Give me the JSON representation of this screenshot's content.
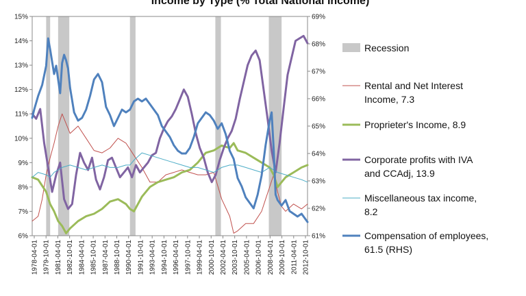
{
  "chart_data": {
    "type": "line",
    "title": "Income by Type (% Total National Income)",
    "x_start_year": 1978.25,
    "x_end_year": 2012.75,
    "x_tick_labels": [
      "1978-04-01",
      "1979-10-01",
      "1981-04-01",
      "1982-10-01",
      "1984-04-01",
      "1985-10-01",
      "1987-04-01",
      "1988-10-01",
      "1990-04-01",
      "1991-10-01",
      "1993-04-01",
      "1994-10-01",
      "1996-04-01",
      "1997-10-01",
      "1999-04-01",
      "2000-10-01",
      "2002-04-01",
      "2003-10-01",
      "2005-04-01",
      "2006-10-01",
      "2008-04-01",
      "2009-10-01",
      "2011-04-01",
      "2012-10-01"
    ],
    "y_left": {
      "min": 6,
      "max": 15,
      "step": 1,
      "ticks": [
        "6%",
        "7%",
        "8%",
        "9%",
        "10%",
        "11%",
        "12%",
        "13%",
        "14%",
        "15%"
      ]
    },
    "y_right": {
      "min": 61,
      "max": 69,
      "step": 1,
      "ticks": [
        "61%",
        "62%",
        "63%",
        "64%",
        "65%",
        "66%",
        "67%",
        "68%",
        "69%"
      ]
    },
    "recessions": [
      [
        1980.0,
        1980.5
      ],
      [
        1981.5,
        1982.9
      ],
      [
        1990.5,
        1991.2
      ],
      [
        2001.2,
        2001.9
      ],
      [
        2007.9,
        2009.5
      ]
    ],
    "legend": [
      {
        "key": "recession",
        "label_lines": [
          "Recession"
        ],
        "color": "#c8c8c8",
        "style": "block"
      },
      {
        "key": "rental",
        "label_lines": [
          "Rental and Net Interest",
          "Income, 7.3"
        ],
        "color": "#c0504d",
        "style": "line",
        "width": 1
      },
      {
        "key": "proprietor",
        "label_lines": [
          "Proprieter's Income, 8.9"
        ],
        "color": "#9bbb59",
        "style": "line",
        "width": 3
      },
      {
        "key": "corporate",
        "label_lines": [
          "Corporate profits with IVA",
          "and CCAdj, 13.9"
        ],
        "color": "#8064a2",
        "style": "line",
        "width": 3
      },
      {
        "key": "misc",
        "label_lines": [
          "Miscellaneous tax income,",
          "8.2"
        ],
        "color": "#4bacc6",
        "style": "line",
        "width": 1
      },
      {
        "key": "comp",
        "label_lines": [
          "Compensation of employees,",
          "61.5 (RHS)"
        ],
        "color": "#4f81bd",
        "style": "line",
        "width": 3
      }
    ],
    "series": [
      {
        "key": "rental",
        "name": "Rental and Net Interest Income, 7.3",
        "axis": "left",
        "x": [
          1978.25,
          1979.0,
          1979.5,
          1980.0,
          1980.5,
          1981.0,
          1981.5,
          1982.0,
          1982.5,
          1983.0,
          1984.0,
          1985.0,
          1986.0,
          1987.0,
          1988.0,
          1989.0,
          1990.0,
          1991.0,
          1992.0,
          1993.0,
          1994.0,
          1995.0,
          1996.0,
          1997.0,
          1998.0,
          1999.0,
          2000.0,
          2001.0,
          2002.0,
          2003.0,
          2003.5,
          2004.0,
          2005.0,
          2006.0,
          2007.0,
          2007.5,
          2008.0,
          2008.5,
          2009.0,
          2009.5,
          2010.0,
          2011.0,
          2012.0,
          2012.75
        ],
        "y": [
          6.6,
          6.8,
          7.5,
          8.5,
          9.2,
          9.8,
          10.5,
          11.0,
          10.6,
          10.2,
          10.5,
          10.0,
          9.5,
          9.4,
          9.6,
          10.0,
          9.8,
          9.3,
          8.8,
          8.2,
          8.2,
          8.5,
          8.6,
          8.7,
          8.6,
          8.5,
          8.5,
          8.6,
          7.5,
          6.8,
          6.1,
          6.2,
          6.5,
          6.5,
          7.0,
          7.5,
          8.0,
          8.5,
          7.8,
          7.2,
          7.0,
          7.3,
          7.1,
          7.3
        ]
      },
      {
        "key": "proprietor",
        "name": "Proprieter's Income, 8.9",
        "axis": "left",
        "x": [
          1978.25,
          1979.0,
          1980.0,
          1980.5,
          1981.0,
          1981.5,
          1982.0,
          1982.5,
          1983.0,
          1984.0,
          1985.0,
          1986.0,
          1987.0,
          1988.0,
          1989.0,
          1990.0,
          1990.5,
          1991.0,
          1992.0,
          1993.0,
          1994.0,
          1995.0,
          1996.0,
          1997.0,
          1998.0,
          1999.0,
          2000.0,
          2001.0,
          2002.0,
          2003.0,
          2003.5,
          2004.0,
          2005.0,
          2006.0,
          2007.0,
          2008.0,
          2008.5,
          2009.0,
          2010.0,
          2011.0,
          2012.0,
          2012.75
        ],
        "y": [
          8.4,
          8.3,
          7.8,
          7.3,
          7.0,
          6.6,
          6.4,
          6.1,
          6.3,
          6.6,
          6.8,
          6.9,
          7.1,
          7.4,
          7.5,
          7.3,
          7.1,
          7.0,
          7.6,
          8.0,
          8.2,
          8.3,
          8.4,
          8.6,
          8.7,
          9.0,
          9.4,
          9.5,
          9.7,
          9.6,
          9.8,
          9.5,
          9.4,
          9.2,
          9.0,
          8.8,
          8.5,
          8.0,
          8.4,
          8.6,
          8.8,
          8.9
        ]
      },
      {
        "key": "corporate",
        "name": "Corporate profits with IVA and CCAdj, 13.9",
        "axis": "left",
        "x": [
          1978.25,
          1978.75,
          1979.25,
          1979.75,
          1980.25,
          1980.75,
          1981.25,
          1981.75,
          1982.25,
          1982.75,
          1983.25,
          1983.75,
          1984.25,
          1984.75,
          1985.25,
          1985.75,
          1986.25,
          1986.75,
          1987.25,
          1987.75,
          1988.25,
          1988.75,
          1989.25,
          1989.75,
          1990.25,
          1990.75,
          1991.25,
          1991.75,
          1992.25,
          1992.75,
          1993.25,
          1993.75,
          1994.25,
          1994.75,
          1995.25,
          1995.75,
          1996.25,
          1996.75,
          1997.25,
          1997.75,
          1998.25,
          1998.75,
          1999.25,
          1999.75,
          2000.25,
          2000.75,
          2001.25,
          2001.75,
          2002.25,
          2002.75,
          2003.25,
          2003.75,
          2004.25,
          2004.75,
          2005.25,
          2005.75,
          2006.25,
          2006.75,
          2007.25,
          2007.75,
          2008.25,
          2008.75,
          2009.25,
          2009.75,
          2010.25,
          2010.75,
          2011.25,
          2011.75,
          2012.25,
          2012.75
        ],
        "y": [
          11.0,
          10.8,
          11.2,
          9.8,
          8.8,
          7.8,
          8.5,
          9.0,
          7.5,
          7.1,
          7.3,
          8.5,
          9.4,
          9.0,
          8.7,
          9.2,
          8.3,
          7.9,
          8.4,
          9.1,
          9.2,
          8.8,
          8.4,
          8.6,
          8.8,
          8.4,
          8.9,
          8.6,
          8.8,
          9.0,
          9.3,
          9.4,
          10.0,
          10.4,
          10.7,
          10.9,
          11.2,
          11.6,
          12.0,
          11.7,
          11.0,
          10.2,
          9.6,
          9.2,
          8.6,
          8.2,
          8.5,
          9.1,
          9.6,
          10.0,
          10.3,
          10.8,
          11.6,
          12.3,
          13.0,
          13.4,
          13.6,
          13.2,
          12.0,
          10.8,
          9.5,
          8.6,
          9.8,
          11.2,
          12.6,
          13.3,
          14.0,
          14.1,
          14.2,
          13.9
        ]
      },
      {
        "key": "misc",
        "name": "Miscellaneous tax income, 8.2",
        "axis": "left",
        "x": [
          1978.25,
          1979.0,
          1980.0,
          1980.5,
          1981.0,
          1981.5,
          1982.0,
          1983.0,
          1984.0,
          1985.0,
          1986.0,
          1987.0,
          1988.0,
          1989.0,
          1990.0,
          1990.5,
          1991.0,
          1992.0,
          1993.0,
          1994.0,
          1995.0,
          1996.0,
          1997.0,
          1998.0,
          1999.0,
          2000.0,
          2001.0,
          2002.0,
          2003.0,
          2004.0,
          2005.0,
          2006.0,
          2007.0,
          2008.0,
          2009.0,
          2010.0,
          2011.0,
          2012.0,
          2012.75
        ],
        "y": [
          8.4,
          8.6,
          8.5,
          8.4,
          8.6,
          8.7,
          8.8,
          8.9,
          8.8,
          8.7,
          8.8,
          8.9,
          8.8,
          8.8,
          8.9,
          8.9,
          9.1,
          9.4,
          9.3,
          9.2,
          9.1,
          9.0,
          8.9,
          8.8,
          8.8,
          8.7,
          8.6,
          8.8,
          8.9,
          8.9,
          8.8,
          8.7,
          8.6,
          8.8,
          8.6,
          8.5,
          8.4,
          8.3,
          8.2
        ]
      },
      {
        "key": "comp",
        "name": "Compensation of employees, 61.5 (RHS)",
        "axis": "right",
        "x": [
          1978.25,
          1978.5,
          1979.0,
          1979.5,
          1980.0,
          1980.25,
          1980.5,
          1981.0,
          1981.25,
          1981.5,
          1981.75,
          1982.0,
          1982.25,
          1982.5,
          1982.75,
          1983.0,
          1983.5,
          1984.0,
          1984.5,
          1985.0,
          1985.5,
          1986.0,
          1986.5,
          1987.0,
          1987.5,
          1988.0,
          1988.5,
          1989.0,
          1989.5,
          1990.0,
          1990.5,
          1991.0,
          1991.5,
          1992.0,
          1992.5,
          1993.0,
          1993.5,
          1994.0,
          1994.5,
          1995.0,
          1995.5,
          1996.0,
          1996.5,
          1997.0,
          1997.5,
          1998.0,
          1998.5,
          1999.0,
          1999.5,
          2000.0,
          2000.5,
          2001.0,
          2001.5,
          2002.0,
          2002.5,
          2003.0,
          2003.5,
          2004.0,
          2004.5,
          2005.0,
          2005.5,
          2006.0,
          2006.5,
          2007.0,
          2007.5,
          2008.0,
          2008.25,
          2008.5,
          2008.75,
          2009.0,
          2009.5,
          2010.0,
          2010.5,
          2011.0,
          2011.5,
          2012.0,
          2012.5,
          2012.75
        ],
        "y": [
          65.3,
          65.6,
          66.1,
          66.5,
          67.2,
          68.2,
          67.8,
          66.9,
          67.2,
          66.7,
          66.2,
          67.3,
          67.6,
          67.4,
          67.1,
          66.4,
          65.5,
          65.2,
          65.3,
          65.6,
          66.1,
          66.7,
          66.9,
          66.6,
          65.7,
          65.4,
          65.0,
          65.3,
          65.6,
          65.5,
          65.6,
          65.9,
          66.0,
          65.9,
          66.0,
          65.8,
          65.6,
          65.4,
          65.0,
          64.8,
          64.6,
          64.3,
          64.1,
          64.0,
          64.0,
          64.2,
          64.6,
          65.1,
          65.3,
          65.5,
          65.4,
          65.2,
          64.9,
          65.1,
          64.7,
          64.1,
          63.8,
          63.1,
          62.8,
          62.4,
          62.2,
          62.0,
          62.5,
          63.2,
          64.3,
          65.2,
          65.5,
          64.2,
          62.5,
          62.3,
          62.1,
          62.3,
          61.9,
          61.8,
          61.7,
          61.8,
          61.6,
          61.5
        ]
      }
    ]
  }
}
